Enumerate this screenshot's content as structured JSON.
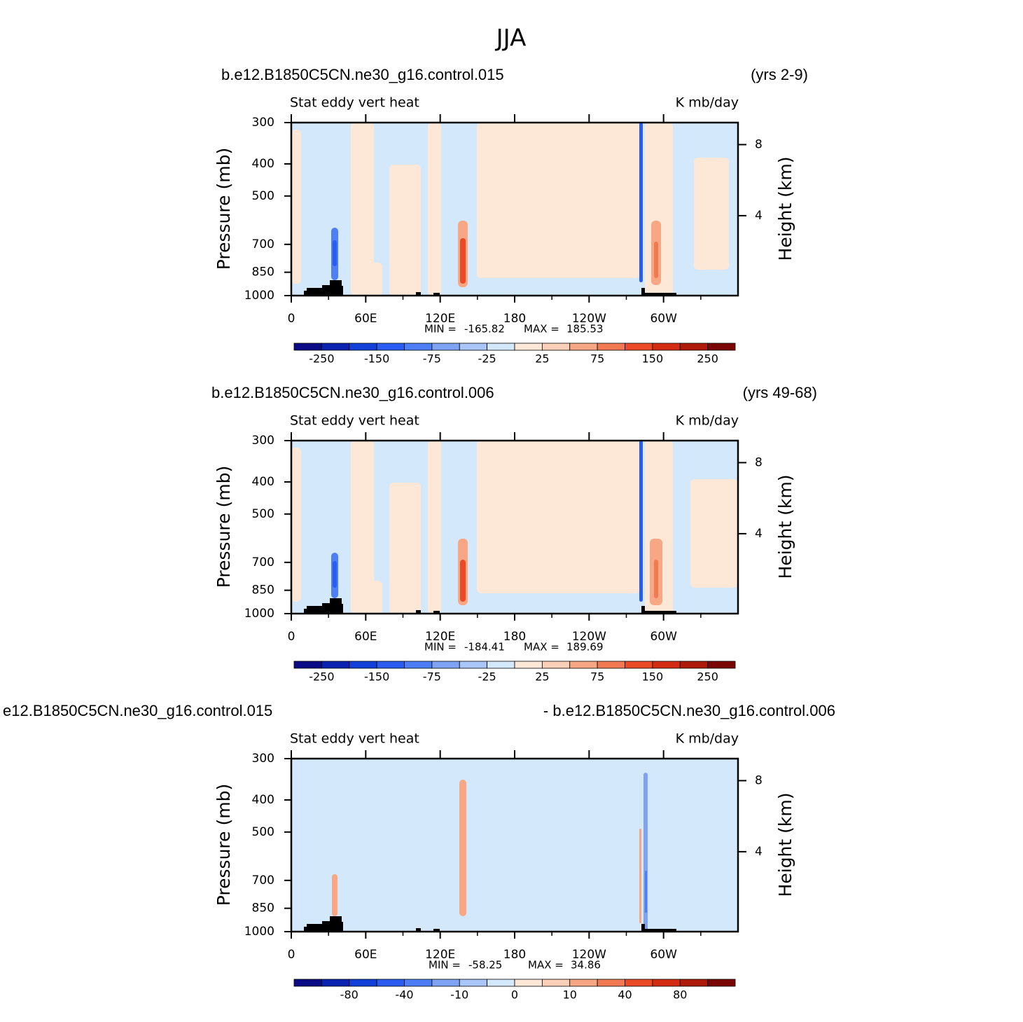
{
  "title": "JJA",
  "chart_data": [
    {
      "type": "contour",
      "subtitle_left": "b.e12.B1850C5CN.ne30_g16.control.015",
      "subtitle_right": "(yrs 2-9)",
      "title_left": "Stat eddy vert heat",
      "units": "K mb/day",
      "ylabel": "Pressure (mb)",
      "y2label": "Height (km)",
      "ylim": [
        1000,
        300
      ],
      "yticks": [
        300,
        400,
        500,
        700,
        850,
        1000
      ],
      "ylog": true,
      "y2lim": [
        -0.5,
        9.24
      ],
      "y2ticks": [
        8,
        4
      ],
      "xlim": [
        0,
        360
      ],
      "xticks": [
        0,
        {
          "value": 60,
          "label": "60E"
        },
        {
          "value": 120,
          "label": "120E"
        },
        180,
        {
          "value": 240,
          "label": "120W"
        },
        {
          "value": 300,
          "label": "60W"
        }
      ],
      "min_label": "MIN =",
      "min": -165.82,
      "max_label": "MAX =",
      "max": 185.53,
      "colorbar": {
        "colors": [
          "#0b0c85",
          "#0a22b0",
          "#1040d8",
          "#2b5cf2",
          "#4d7ef5",
          "#7fa3f4",
          "#aac5f7",
          "#d4e8fc",
          "#fde8d8",
          "#fbcfb8",
          "#f7a784",
          "#f27a52",
          "#ea4b26",
          "#d42c12",
          "#ae1b0b",
          "#7a0505"
        ],
        "levels": [
          -250,
          null,
          -150,
          null,
          -75,
          null,
          -25,
          null,
          25,
          null,
          75,
          null,
          150,
          null,
          250
        ]
      }
    },
    {
      "type": "contour",
      "subtitle_left": "b.e12.B1850C5CN.ne30_g16.control.006",
      "subtitle_right": "(yrs 49-68)",
      "title_left": "Stat eddy vert heat",
      "units": "K mb/day",
      "ylabel": "Pressure (mb)",
      "y2label": "Height (km)",
      "ylim": [
        1000,
        300
      ],
      "yticks": [
        300,
        400,
        500,
        700,
        850,
        1000
      ],
      "ylog": true,
      "y2lim": [
        -0.5,
        9.24
      ],
      "y2ticks": [
        8,
        4
      ],
      "xlim": [
        0,
        360
      ],
      "xticks": [
        0,
        {
          "value": 60,
          "label": "60E"
        },
        {
          "value": 120,
          "label": "120E"
        },
        180,
        {
          "value": 240,
          "label": "120W"
        },
        {
          "value": 300,
          "label": "60W"
        }
      ],
      "min_label": "MIN =",
      "min": -184.41,
      "max_label": "MAX =",
      "max": 189.69,
      "colorbar": {
        "colors": [
          "#0b0c85",
          "#0a22b0",
          "#1040d8",
          "#2b5cf2",
          "#4d7ef5",
          "#7fa3f4",
          "#aac5f7",
          "#d4e8fc",
          "#fde8d8",
          "#fbcfb8",
          "#f7a784",
          "#f27a52",
          "#ea4b26",
          "#d42c12",
          "#ae1b0b",
          "#7a0505"
        ],
        "levels": [
          -250,
          null,
          -150,
          null,
          -75,
          null,
          -25,
          null,
          25,
          null,
          75,
          null,
          150,
          null,
          250
        ]
      }
    },
    {
      "type": "contour",
      "subtitle_left": "e12.B1850C5CN.ne30_g16.control.015",
      "subtitle_right": "- b.e12.B1850C5CN.ne30_g16.control.006",
      "title_left": "Stat eddy vert heat",
      "units": "K mb/day",
      "ylabel": "Pressure (mb)",
      "y2label": "Height (km)",
      "ylim": [
        1000,
        300
      ],
      "yticks": [
        300,
        400,
        500,
        700,
        850,
        1000
      ],
      "ylog": true,
      "y2lim": [
        -0.5,
        9.24
      ],
      "y2ticks": [
        8,
        4
      ],
      "xlim": [
        0,
        360
      ],
      "xticks": [
        0,
        {
          "value": 60,
          "label": "60E"
        },
        {
          "value": 120,
          "label": "120E"
        },
        180,
        {
          "value": 240,
          "label": "120W"
        },
        {
          "value": 300,
          "label": "60W"
        }
      ],
      "min_label": "MIN =",
      "min": -58.25,
      "max_label": "MAX =",
      "max": 34.86,
      "colorbar": {
        "colors": [
          "#0b0c85",
          "#0a22b0",
          "#1040d8",
          "#2b5cf2",
          "#4d7ef5",
          "#7fa3f4",
          "#aac5f7",
          "#d4e8fc",
          "#fde8d8",
          "#fbcfb8",
          "#f7a784",
          "#f27a52",
          "#ea4b26",
          "#d42c12",
          "#ae1b0b",
          "#7a0505"
        ],
        "levels": [
          null,
          -80,
          null,
          -40,
          null,
          -10,
          null,
          0,
          null,
          10,
          null,
          40,
          null,
          80,
          null
        ]
      }
    }
  ]
}
